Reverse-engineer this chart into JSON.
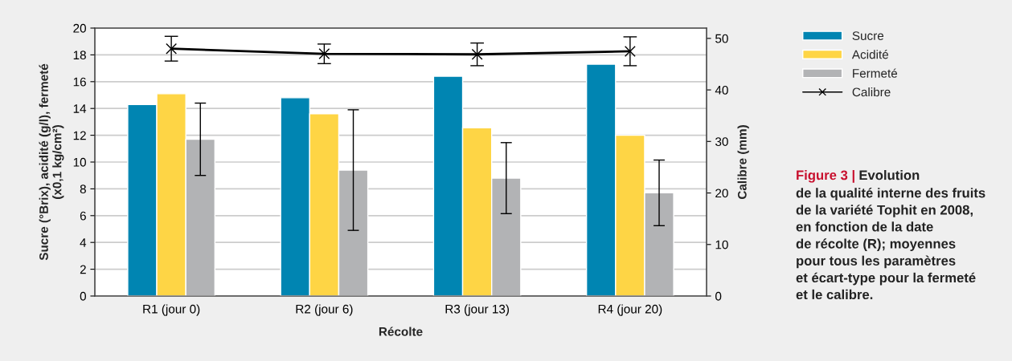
{
  "chart_data": {
    "type": "bar",
    "xlabel": "Récolte",
    "ylabel": "Sucre (°Brix), acidité (g/l), fermeté\n(x0,1 kg/cm²)",
    "y2label": "Calibre (mm)",
    "categories": [
      "R1 (jour 0)",
      "R2 (jour 6)",
      "R3 (jour 13)",
      "R4 (jour 20)"
    ],
    "series": [
      {
        "name": "Sucre",
        "color": "#0085b2",
        "values": [
          14.3,
          14.8,
          16.4,
          17.3
        ]
      },
      {
        "name": "Acidité",
        "color": "#fed545",
        "values": [
          15.1,
          13.6,
          12.55,
          12.0
        ]
      },
      {
        "name": "Fermeté",
        "color": "#b2b3b5",
        "values": [
          11.7,
          9.4,
          8.8,
          7.7
        ],
        "errors": [
          2.7,
          4.5,
          2.65,
          2.45
        ]
      },
      {
        "name": "Calibre",
        "type": "line",
        "axis": "y2",
        "color": "#000000",
        "marker": "cross",
        "values": [
          48.0,
          47.0,
          46.9,
          47.5
        ],
        "errors": [
          2.4,
          1.9,
          2.2,
          2.8
        ]
      }
    ],
    "ylim": [
      0,
      20
    ],
    "yticks": [
      0,
      2,
      4,
      6,
      8,
      10,
      12,
      14,
      16,
      18,
      20
    ],
    "y2lim": [
      0,
      52
    ],
    "y2ticks": [
      0,
      10,
      20,
      30,
      40,
      50
    ],
    "grid": "y",
    "legend": "top right",
    "annotations": [
      "Figure 3 | ",
      "Evolution\nde la qualité interne des fruits\nde la variété Tophit en 2008,\nen fonction de la date\nde récolte (R); moyennes\npour tous les paramètres\net écart-type pour la fermeté\net le calibre."
    ]
  }
}
